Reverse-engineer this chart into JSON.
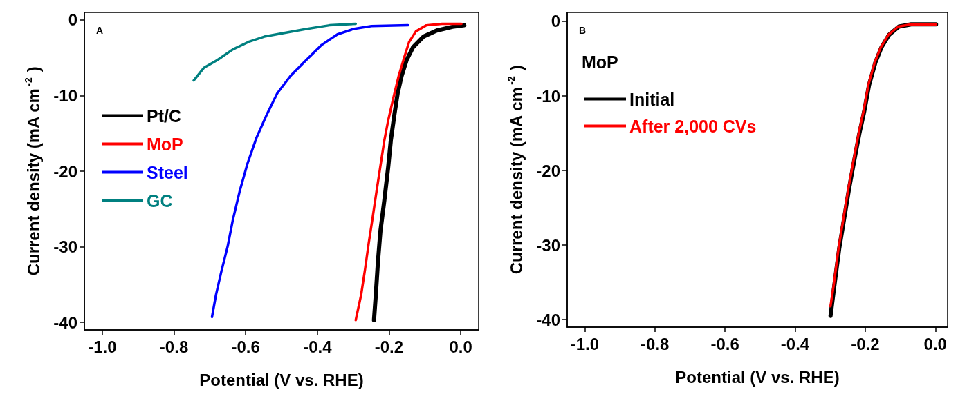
{
  "chart_data": [
    {
      "type": "line",
      "title": "A",
      "xlabel": "Potential (V vs. RHE)",
      "ylabel": "Current density (mA cm$^{-2}$)",
      "xlim": [
        -1.05,
        0.05
      ],
      "ylim": [
        -41,
        1
      ],
      "xticks": [
        {
          "value": -1.0,
          "label": "-1.0"
        },
        {
          "value": -0.8,
          "label": "-0.8"
        },
        {
          "value": -0.6,
          "label": "-0.6"
        },
        {
          "value": -0.4,
          "label": "-0.4"
        },
        {
          "value": -0.2,
          "label": "-0.2"
        },
        {
          "value": 0,
          "label": "0.0"
        }
      ],
      "yticks": [
        0,
        -10,
        -20,
        -30,
        -40
      ],
      "grid": false,
      "legend": "left",
      "marker": "none",
      "line_style": "solid",
      "series": [
        {
          "name": "Pt/C",
          "color": "#000000",
          "x": [
            0.01,
            -0.023,
            -0.067,
            -0.104,
            -0.133,
            -0.151,
            -0.165,
            -0.176,
            -0.185,
            -0.195,
            -0.202,
            -0.213,
            -0.224,
            -0.231,
            -0.237,
            -0.242
          ],
          "values": [
            -0.7,
            -0.9,
            -1.4,
            -2.2,
            -3.6,
            -5.3,
            -7.4,
            -9.7,
            -12.5,
            -15.9,
            -19.3,
            -23.8,
            -27.9,
            -32.0,
            -36.4,
            -39.7
          ]
        },
        {
          "name": "MoP",
          "color": "#ff0000",
          "x": [
            0.002,
            -0.052,
            -0.096,
            -0.125,
            -0.144,
            -0.158,
            -0.173,
            -0.187,
            -0.202,
            -0.213,
            -0.224,
            -0.235,
            -0.246,
            -0.257,
            -0.267,
            -0.278,
            -0.293
          ],
          "values": [
            -0.5,
            -0.5,
            -0.7,
            -1.5,
            -2.9,
            -5.0,
            -7.4,
            -10.1,
            -13.2,
            -15.9,
            -19.3,
            -22.7,
            -26.2,
            -29.6,
            -33.0,
            -36.4,
            -39.7
          ]
        },
        {
          "name": "Steel",
          "color": "#0000ff",
          "x": [
            -0.147,
            -0.249,
            -0.3,
            -0.344,
            -0.388,
            -0.431,
            -0.475,
            -0.512,
            -0.541,
            -0.57,
            -0.595,
            -0.617,
            -0.636,
            -0.65,
            -0.668,
            -0.683,
            -0.694
          ],
          "values": [
            -0.7,
            -0.8,
            -1.2,
            -1.9,
            -3.3,
            -5.3,
            -7.4,
            -9.7,
            -12.5,
            -15.6,
            -19.0,
            -22.7,
            -26.5,
            -29.9,
            -33.3,
            -36.4,
            -39.3
          ]
        },
        {
          "name": "GC",
          "color": "#008080",
          "x": [
            -0.293,
            -0.366,
            -0.431,
            -0.49,
            -0.548,
            -0.592,
            -0.636,
            -0.679,
            -0.716,
            -0.745
          ],
          "values": [
            -0.5,
            -0.7,
            -1.2,
            -1.7,
            -2.2,
            -2.9,
            -3.9,
            -5.3,
            -6.3,
            -8.0
          ]
        }
      ]
    },
    {
      "type": "line",
      "title": "B",
      "xlabel": "Potential (V vs. RHE)",
      "ylabel": "Current density (mA cm$^{-2}$)",
      "legend_title": "MoP",
      "xlim": [
        -1.05,
        0.035
      ],
      "ylim": [
        -41,
        1.2
      ],
      "xticks": [
        {
          "value": -1.0,
          "label": "-1.0"
        },
        {
          "value": -0.8,
          "label": "-0.8"
        },
        {
          "value": -0.6,
          "label": "-0.6"
        },
        {
          "value": -0.4,
          "label": "-0.4"
        },
        {
          "value": -0.2,
          "label": "-0.2"
        },
        {
          "value": 0,
          "label": "0.0"
        }
      ],
      "yticks": [
        0,
        -10,
        -20,
        -30,
        -40
      ],
      "grid": false,
      "legend": "left",
      "marker": "none",
      "line_style": "solid",
      "series": [
        {
          "name": "Initial",
          "color": "#000000",
          "x": [
            0.002,
            -0.069,
            -0.104,
            -0.132,
            -0.154,
            -0.171,
            -0.189,
            -0.203,
            -0.217,
            -0.232,
            -0.246,
            -0.26,
            -0.274,
            -0.288,
            -0.299
          ],
          "values": [
            -0.4,
            -0.4,
            -0.7,
            -1.8,
            -3.5,
            -5.5,
            -8.5,
            -12.1,
            -15.1,
            -18.8,
            -22.4,
            -26.4,
            -30.4,
            -35.4,
            -39.5
          ]
        },
        {
          "name": "After 2,000 CVs",
          "color": "#ff0000",
          "x": [
            0.002,
            -0.069,
            -0.106,
            -0.134,
            -0.156,
            -0.173,
            -0.191,
            -0.205,
            -0.219,
            -0.234,
            -0.248,
            -0.262,
            -0.276,
            -0.29,
            -0.299
          ],
          "values": [
            -0.4,
            -0.4,
            -0.7,
            -1.8,
            -3.5,
            -5.5,
            -8.5,
            -12.1,
            -15.1,
            -18.8,
            -22.4,
            -26.4,
            -30.4,
            -35.4,
            -38.2
          ]
        }
      ]
    }
  ]
}
